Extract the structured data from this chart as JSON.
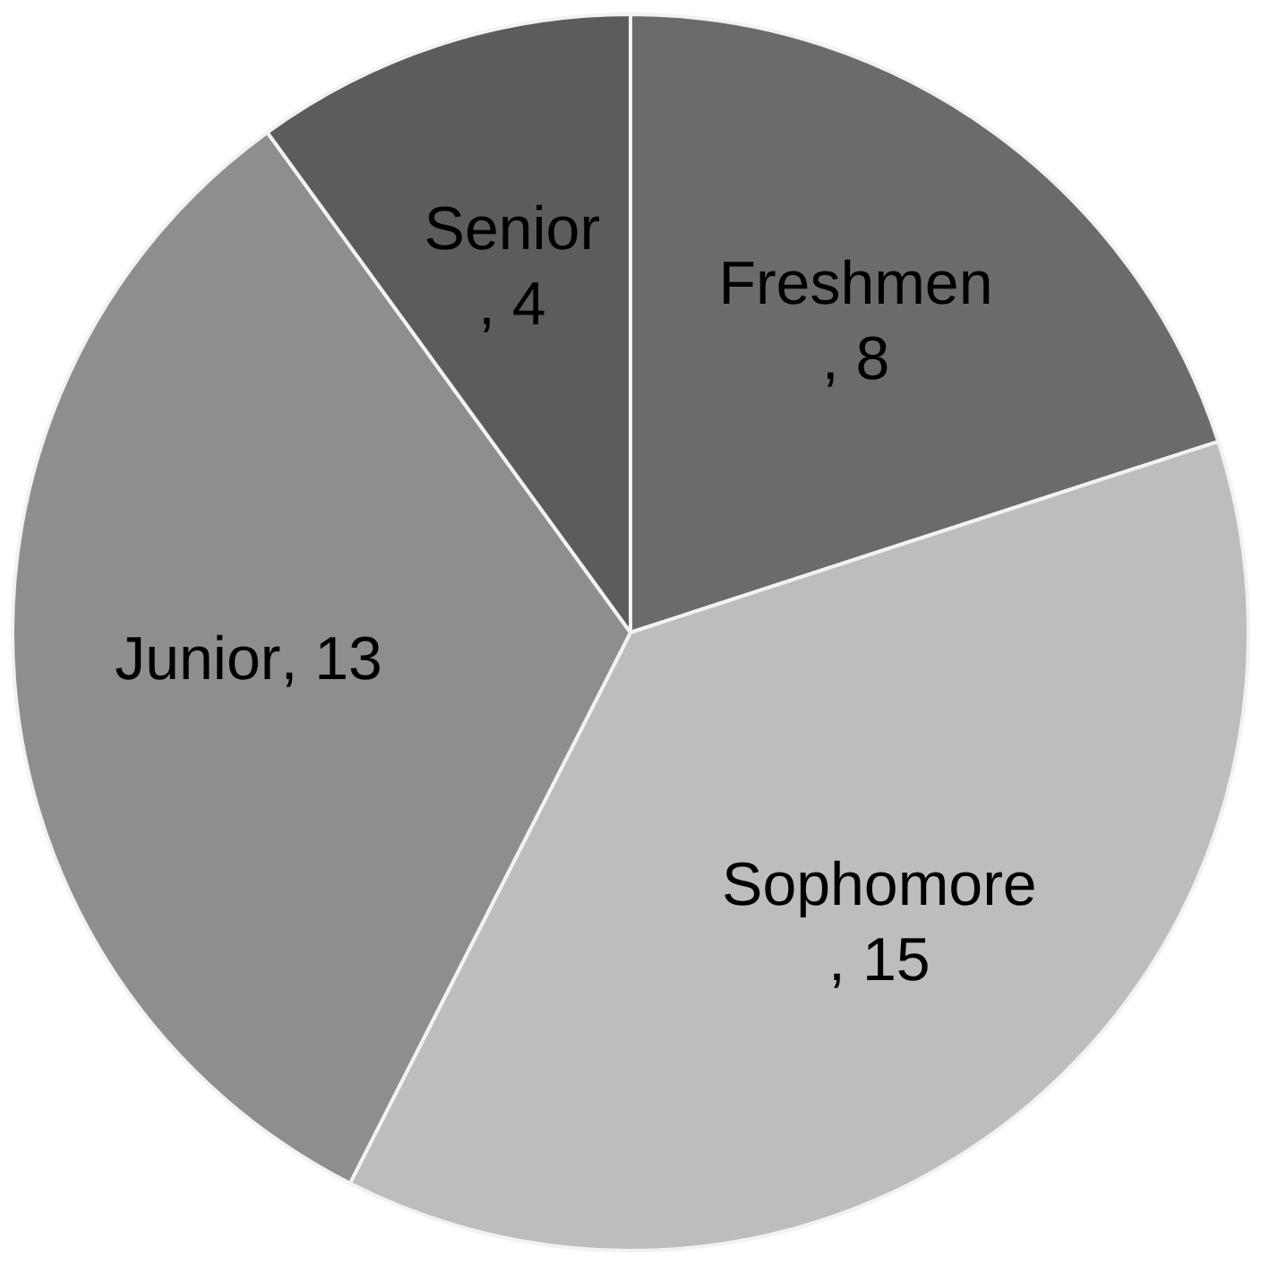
{
  "chart_data": {
    "type": "pie",
    "categories": [
      "Freshmen",
      "Sophomore",
      "Junior",
      "Senior"
    ],
    "values": [
      8,
      15,
      13,
      4
    ],
    "value_labels": [
      ", 8",
      ", 15",
      ", 13",
      ", 4"
    ],
    "colors": [
      "#6b6b6b",
      "#bdbdbd",
      "#8e8e8e",
      "#5c5c5c"
    ],
    "legend": false
  }
}
